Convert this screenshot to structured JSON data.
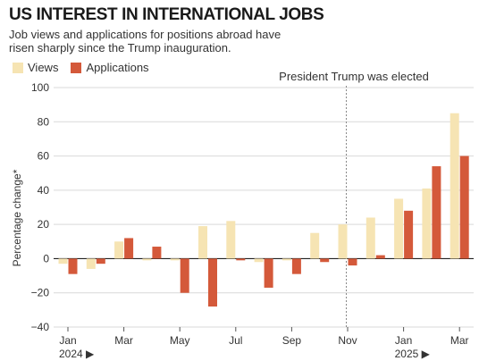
{
  "header": {
    "title": "US INTEREST IN INTERNATIONAL JOBS",
    "subtitle": "Job views and applications for positions abroad have risen sharply since the Trump inauguration."
  },
  "chart_data": {
    "type": "bar",
    "ylabel": "Percentage change*",
    "ylim": [
      -40,
      100
    ],
    "yticks": [
      100,
      80,
      60,
      40,
      20,
      0,
      -20,
      -40
    ],
    "grid": true,
    "legend": "top-left",
    "months": [
      "Jan 2024",
      "Feb 2024",
      "Mar 2024",
      "Apr 2024",
      "May 2024",
      "Jun 2024",
      "Jul 2024",
      "Aug 2024",
      "Sep 2024",
      "Oct 2024",
      "Nov 2024",
      "Dec 2024",
      "Jan 2025",
      "Feb 2025",
      "Mar 2025"
    ],
    "xtick_labels": [
      {
        "month_index": 0,
        "label": "Jan",
        "year": "2024 ▶"
      },
      {
        "month_index": 2,
        "label": "Mar"
      },
      {
        "month_index": 4,
        "label": "May"
      },
      {
        "month_index": 6,
        "label": "Jul"
      },
      {
        "month_index": 8,
        "label": "Sep"
      },
      {
        "month_index": 10,
        "label": "Nov"
      },
      {
        "month_index": 12,
        "label": "Jan",
        "year": "2025 ▶"
      },
      {
        "month_index": 14,
        "label": "Mar"
      }
    ],
    "series": [
      {
        "name": "Views",
        "color": "#f6e4b3",
        "values": [
          -3,
          -6,
          10,
          -1,
          -1,
          19,
          22,
          -2,
          -1,
          15,
          20,
          24,
          35,
          41,
          85
        ]
      },
      {
        "name": "Applications",
        "color": "#d4593a",
        "values": [
          -9,
          -3,
          12,
          7,
          -20,
          -28,
          -1,
          -17,
          -9,
          -2,
          -4,
          2,
          28,
          54,
          60
        ]
      }
    ],
    "annotation": {
      "text": "President Trump was elected",
      "month_index": 10
    }
  }
}
